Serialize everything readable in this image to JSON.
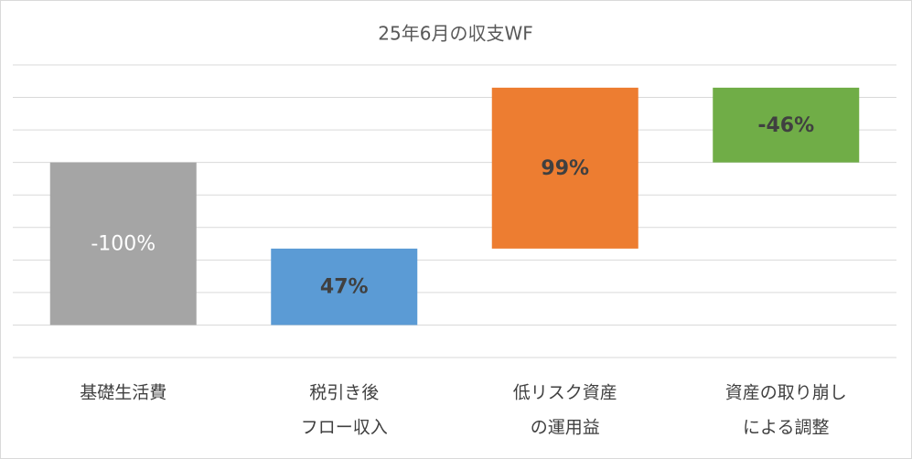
{
  "chart_data": {
    "type": "waterfall",
    "title": "25年6月の収支WF",
    "categories": [
      [
        "基礎生活費"
      ],
      [
        "税引き後",
        "フロー収入"
      ],
      [
        "低リスク資産",
        "の運用益"
      ],
      [
        "資産の取り崩し",
        "による調整"
      ]
    ],
    "values": [
      -100,
      47,
      99,
      -46
    ],
    "value_labels": [
      "-100%",
      "47%",
      "99%",
      "-46%"
    ],
    "colors": [
      "#a5a5a5",
      "#5b9bd5",
      "#ed7d31",
      "#70ad47"
    ],
    "ylim": [
      -20,
      160
    ],
    "yticks": [
      -20,
      0,
      20,
      40,
      60,
      80,
      100,
      120,
      140,
      160
    ],
    "grid": true
  }
}
